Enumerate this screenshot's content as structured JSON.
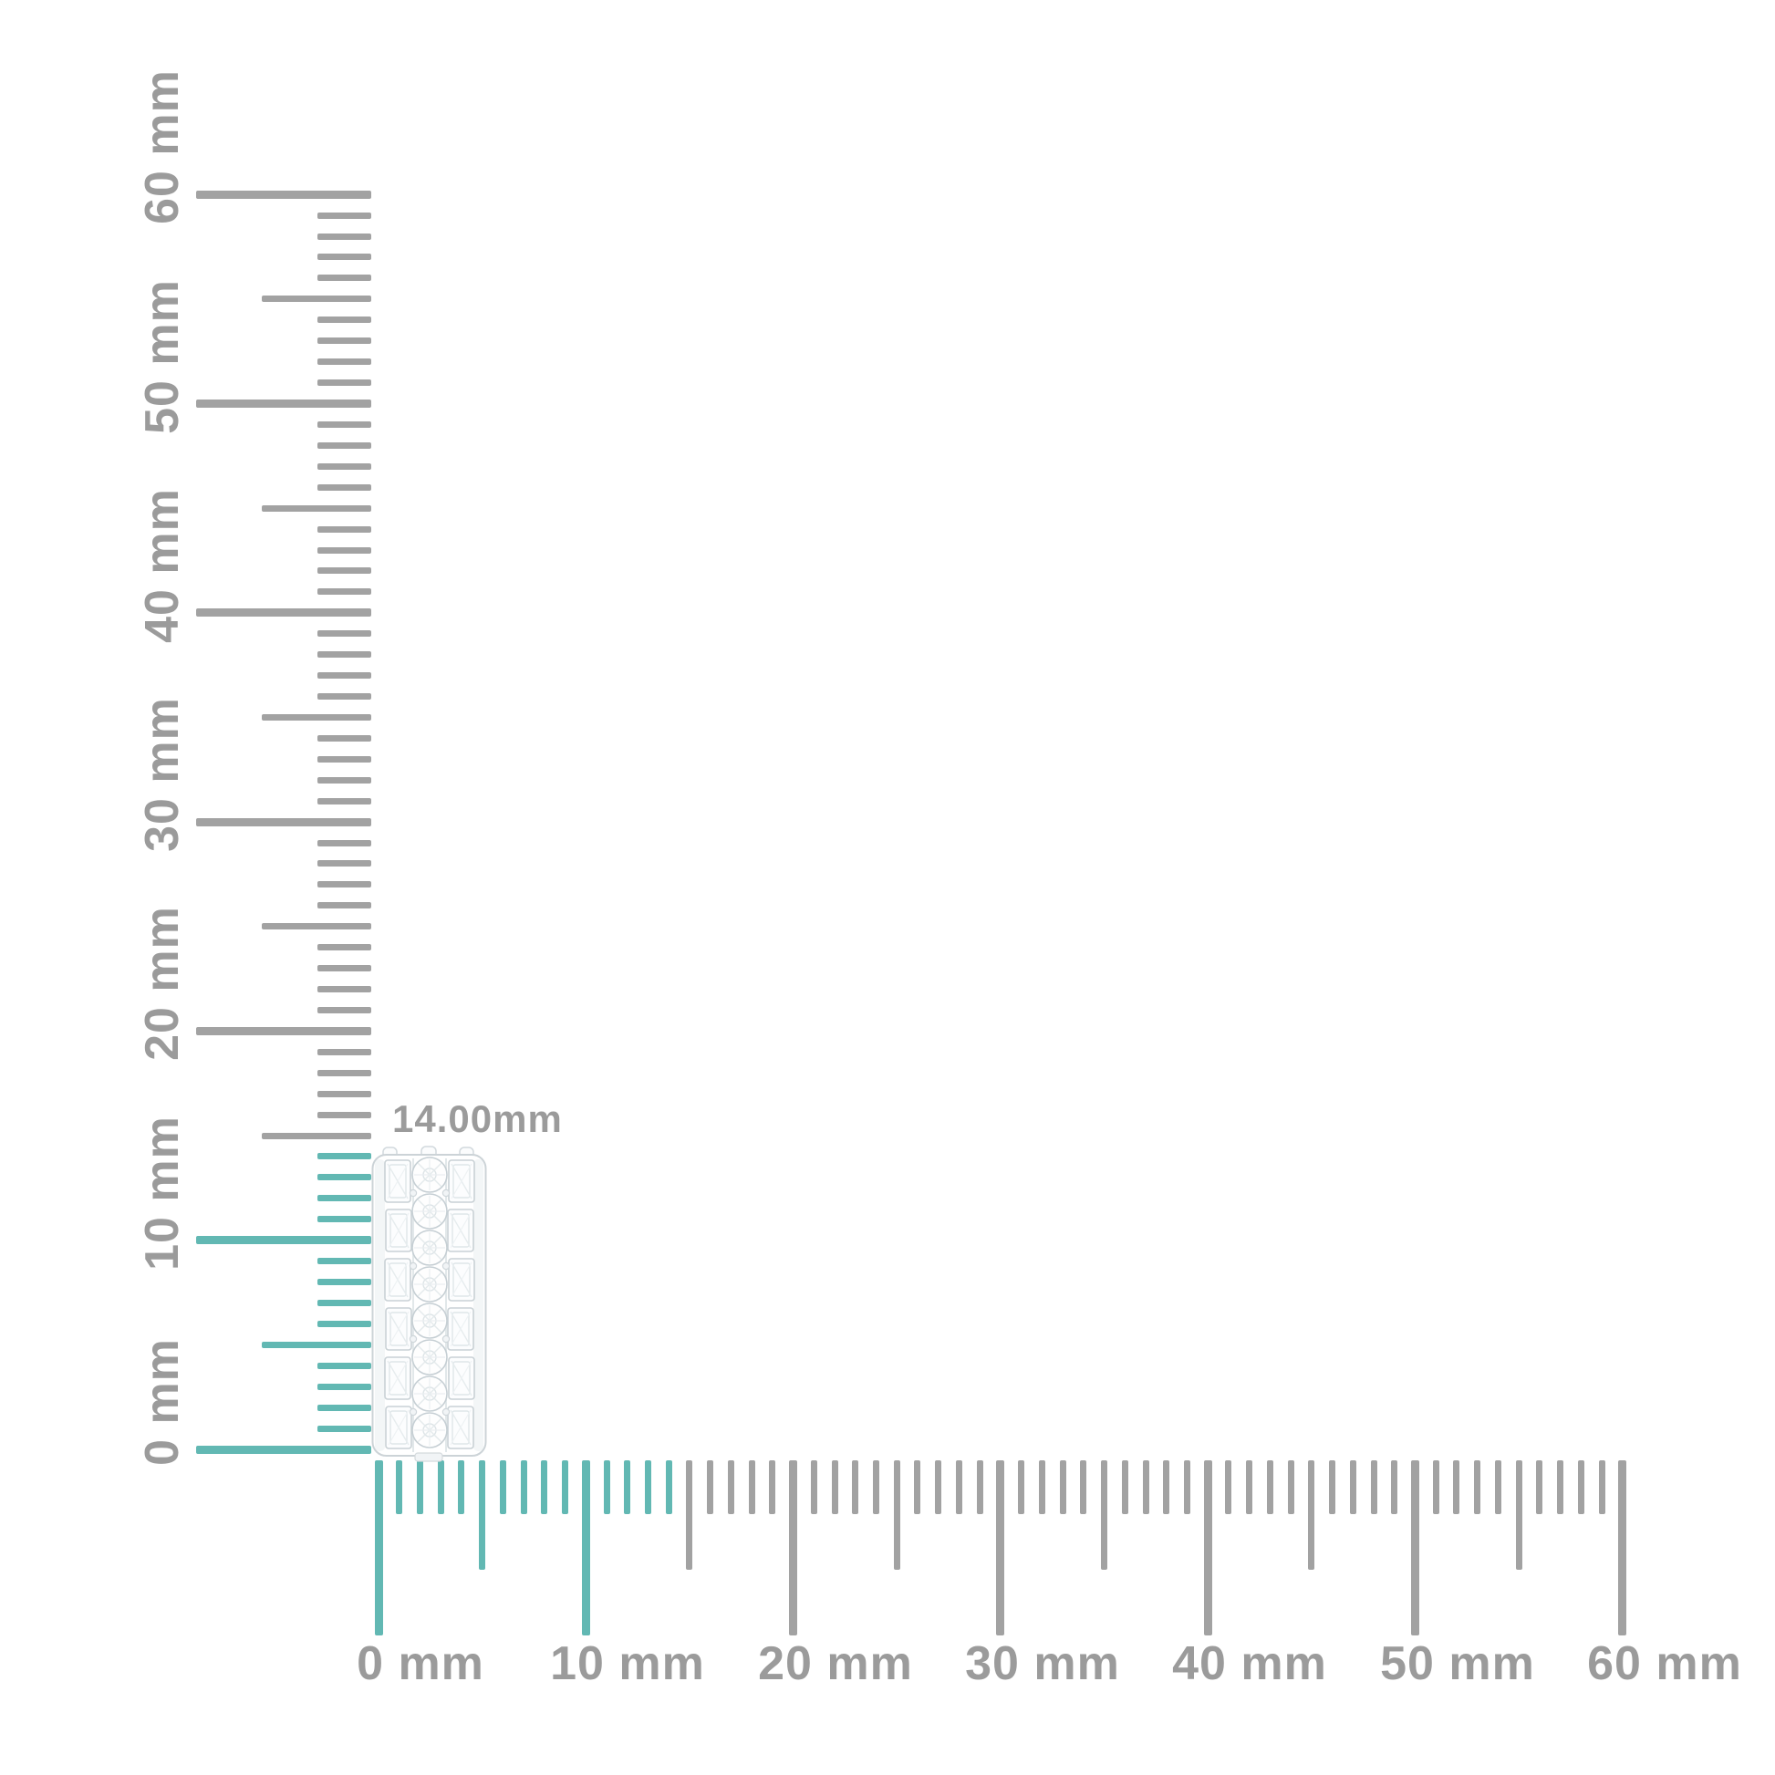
{
  "measurement": {
    "label": "14.00mm"
  },
  "item": {
    "name": "diamond-eternity-band",
    "description": "white diamond band with baguette and round stones"
  },
  "rulers": {
    "unit": "mm",
    "min_mm": 0,
    "max_mm": 60,
    "minor_step_mm": 1,
    "medium_step_mm": 5,
    "major_step_mm": 10,
    "highlight_extent_mm": 14,
    "vertical_labels": [
      "0 mm",
      "10 mm",
      "20 mm",
      "30 mm",
      "40 mm",
      "50 mm",
      "60 mm"
    ],
    "horizontal_labels": [
      "0 mm",
      "10 mm",
      "20 mm",
      "30 mm",
      "40 mm",
      "50 mm",
      "60 mm"
    ],
    "colors": {
      "highlight": "#62b8b3",
      "tick": "#a2a2a2",
      "label": "#9b9b9b"
    }
  }
}
